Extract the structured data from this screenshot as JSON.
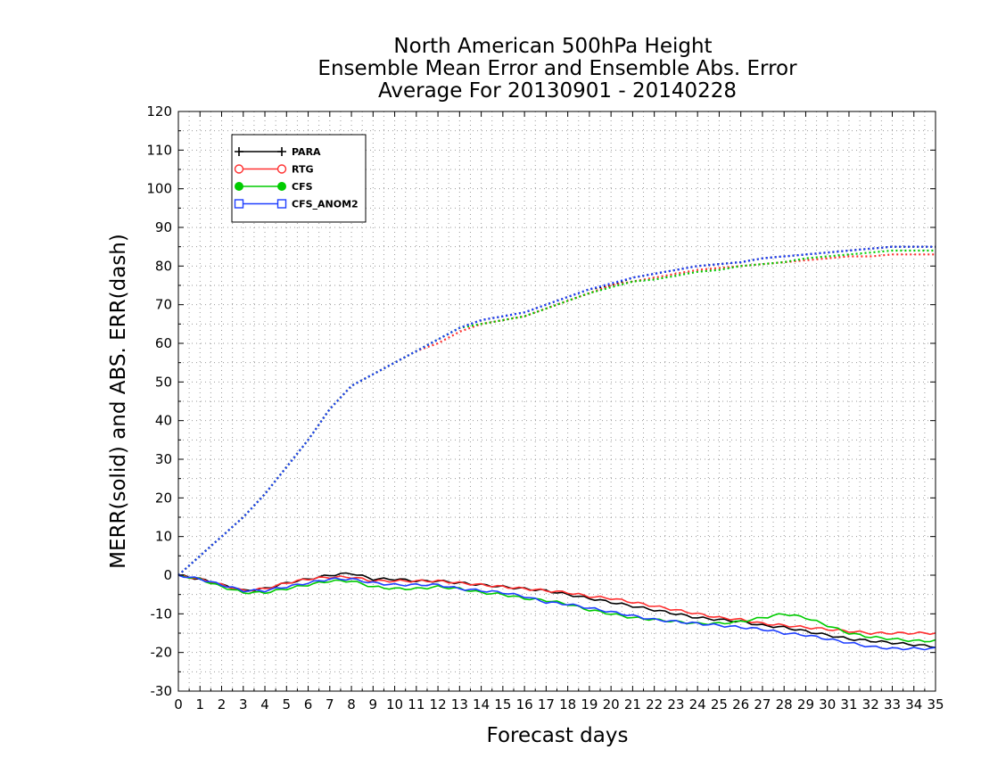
{
  "chart_data": {
    "type": "line",
    "title": [
      "North American 500hPa Height",
      "Ensemble Mean Error and Ensemble Abs. Error",
      "Average For 20130901 - 20140228"
    ],
    "xlabel": "Forecast days",
    "ylabel": "MERR(solid) and ABS. ERR(dash)",
    "xlim": [
      0,
      35
    ],
    "ylim": [
      -30,
      120
    ],
    "xticks": [
      0,
      1,
      2,
      3,
      4,
      5,
      6,
      7,
      8,
      9,
      10,
      11,
      12,
      13,
      14,
      15,
      16,
      17,
      18,
      19,
      20,
      21,
      22,
      23,
      24,
      25,
      26,
      27,
      28,
      29,
      30,
      31,
      32,
      33,
      34,
      35
    ],
    "yticks": [
      -30,
      -20,
      -10,
      0,
      10,
      20,
      30,
      40,
      50,
      60,
      70,
      80,
      90,
      100,
      110,
      120
    ],
    "grid": true,
    "legend_position": "top-left",
    "x": [
      0,
      1,
      2,
      3,
      4,
      5,
      6,
      7,
      8,
      9,
      10,
      11,
      12,
      13,
      14,
      15,
      16,
      17,
      18,
      19,
      20,
      21,
      22,
      23,
      24,
      25,
      26,
      27,
      28,
      29,
      30,
      31,
      32,
      33,
      34,
      35
    ],
    "series": [
      {
        "name": "PARA",
        "color": "#000000",
        "marker": "plus",
        "merr": [
          0,
          -1,
          -2.5,
          -4,
          -3.5,
          -2,
          -1,
          0,
          0.5,
          -1,
          -1,
          -1.5,
          -1.5,
          -2,
          -2.5,
          -3,
          -3.5,
          -4,
          -5,
          -6,
          -7,
          -8,
          -9,
          -10,
          -11,
          -11.5,
          -12,
          -13,
          -13.5,
          -14.5,
          -15.5,
          -16.5,
          -17,
          -17.5,
          -18,
          -18.5
        ],
        "abs_err": [
          0,
          5,
          10,
          15,
          21,
          28,
          35,
          43,
          49,
          52,
          55,
          58,
          61,
          64,
          66,
          67,
          68,
          70,
          72,
          74,
          75,
          77,
          78,
          79,
          80,
          80.5,
          81,
          82,
          82.5,
          83,
          83.5,
          84,
          84.5,
          85,
          85,
          85
        ]
      },
      {
        "name": "RTG",
        "color": "#ff3030",
        "marker": "circle",
        "merr": [
          0,
          -1,
          -2.5,
          -4,
          -3.5,
          -2,
          -1,
          -0.5,
          -0.5,
          -1.5,
          -1.5,
          -1.5,
          -1.5,
          -2,
          -2.5,
          -3,
          -3.5,
          -4,
          -4.5,
          -5.5,
          -6,
          -7,
          -8,
          -9,
          -10,
          -11,
          -11.5,
          -12.5,
          -13,
          -13.5,
          -14,
          -14.5,
          -15,
          -15,
          -15,
          -15
        ],
        "abs_err": [
          0,
          5,
          10,
          15,
          21,
          28,
          35,
          43,
          49,
          52,
          55,
          58,
          60,
          63,
          65,
          66,
          67,
          69,
          71,
          73,
          75,
          76,
          77,
          78,
          79,
          79.5,
          80,
          80.5,
          81,
          81.5,
          82,
          82.5,
          82.5,
          83,
          83,
          83
        ]
      },
      {
        "name": "CFS",
        "color": "#00cc00",
        "marker": "dot",
        "merr": [
          0,
          -1,
          -3,
          -4.5,
          -4.5,
          -3.5,
          -2.5,
          -1.5,
          -1.5,
          -3,
          -3.5,
          -3.5,
          -3,
          -3.5,
          -4.5,
          -5,
          -6,
          -6.5,
          -7.5,
          -9,
          -10,
          -11,
          -11.5,
          -12,
          -12.5,
          -12.5,
          -12,
          -11,
          -10,
          -11,
          -13,
          -15,
          -16,
          -16.5,
          -17,
          -17
        ],
        "abs_err": [
          0,
          5,
          10,
          15,
          21,
          28,
          35,
          43,
          49,
          52,
          55,
          58,
          61,
          64,
          65,
          66,
          67,
          69,
          71,
          73,
          74.5,
          76,
          76.5,
          77.5,
          78.5,
          79,
          80,
          80.5,
          81,
          82,
          82.5,
          83,
          83.5,
          84,
          84,
          84
        ]
      },
      {
        "name": "CFS_ANOM2",
        "color": "#1f3fff",
        "marker": "square",
        "merr": [
          0,
          -1,
          -2.5,
          -4,
          -4,
          -3,
          -2,
          -1,
          -1,
          -2,
          -2.5,
          -2.5,
          -2.5,
          -3.5,
          -4,
          -4.5,
          -5.5,
          -7,
          -7.5,
          -8.5,
          -9.5,
          -10.5,
          -11.5,
          -12,
          -12.5,
          -13,
          -13.5,
          -14,
          -15,
          -15.5,
          -16.5,
          -17.5,
          -18.5,
          -19,
          -19,
          -19
        ],
        "abs_err": [
          0,
          5,
          10,
          15,
          21,
          28,
          35,
          43,
          49,
          52,
          55,
          58,
          61,
          64,
          66,
          67,
          68,
          70,
          72,
          74,
          75.5,
          77,
          78,
          79,
          80,
          80.5,
          81,
          82,
          82.5,
          83,
          83.5,
          84,
          84.5,
          85,
          85,
          85
        ]
      }
    ]
  }
}
